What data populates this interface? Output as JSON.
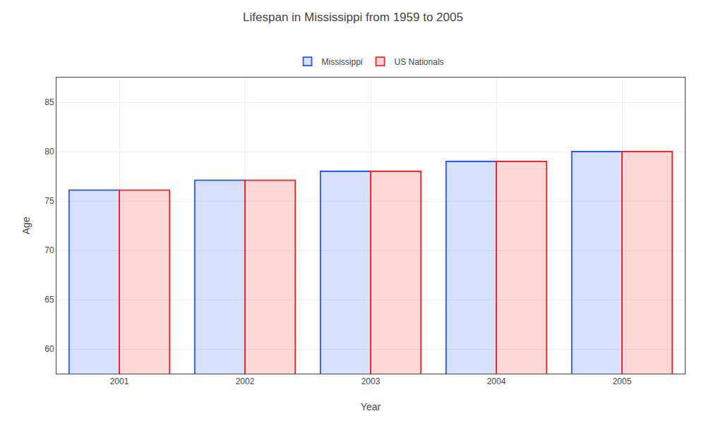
{
  "chart_data": {
    "type": "bar",
    "title": "Lifespan in Mississippi from 1959 to 2005",
    "x_label": "Year",
    "y_label": "Age",
    "categories": [
      "2001",
      "2002",
      "2003",
      "2004",
      "2005"
    ],
    "series": [
      {
        "name": "Mississippi",
        "color": "#2255ff",
        "values": [
          76.1,
          77.1,
          78.0,
          79.0,
          80.0
        ]
      },
      {
        "name": "US Nationals",
        "color": "#ff2222",
        "values": [
          76.1,
          77.1,
          78.0,
          79.0,
          80.0
        ]
      }
    ],
    "ylim": [
      57.5,
      87.5
    ],
    "yticks": [
      60,
      65,
      70,
      75,
      80,
      85
    ],
    "grid": true,
    "legend": "top"
  }
}
